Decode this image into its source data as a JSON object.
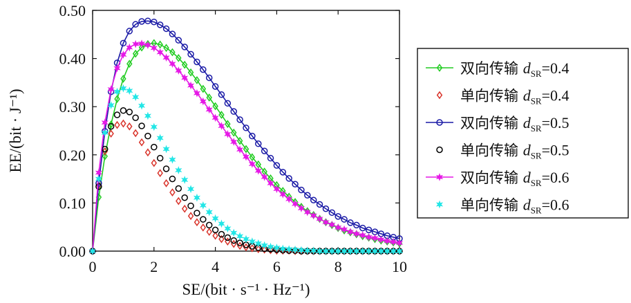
{
  "chart_data": {
    "type": "line",
    "xlabel": "SE/(bit · s⁻¹ · Hz⁻¹)",
    "ylabel": "EE/(bit · J⁻¹)",
    "xlim": [
      0,
      10
    ],
    "ylim": [
      0,
      0.5
    ],
    "xticks": [
      "0",
      "2",
      "4",
      "6",
      "8",
      "10"
    ],
    "yticks": [
      "0.00",
      "0.10",
      "0.20",
      "0.30",
      "0.40",
      "0.50"
    ],
    "grid": false,
    "legend_position": "right",
    "series": [
      {
        "name": "双向传输 dSR=0.4",
        "label_main": "双向传输 ",
        "label_var": "d",
        "label_sub": "SR",
        "label_val": "=0.4",
        "color": "#22cc22",
        "marker": "diamond",
        "line": true,
        "x": [
          0,
          0.2,
          0.4,
          0.6,
          0.8,
          1.0,
          1.2,
          1.4,
          1.6,
          1.8,
          2.0,
          2.2,
          2.4,
          2.6,
          2.8,
          3.0,
          3.2,
          3.4,
          3.6,
          3.8,
          4.0,
          4.2,
          4.4,
          4.6,
          4.8,
          5.0,
          5.2,
          5.4,
          5.6,
          5.8,
          6.0,
          6.2,
          6.4,
          6.6,
          6.8,
          7.0,
          7.2,
          7.4,
          7.6,
          7.8,
          8.0,
          8.2,
          8.4,
          8.6,
          8.8,
          9.0,
          9.2,
          9.4,
          9.6,
          9.8,
          10.0
        ],
        "y": [
          0,
          0.112,
          0.197,
          0.263,
          0.316,
          0.358,
          0.389,
          0.41,
          0.423,
          0.43,
          0.432,
          0.429,
          0.422,
          0.413,
          0.401,
          0.387,
          0.371,
          0.355,
          0.337,
          0.319,
          0.301,
          0.283,
          0.264,
          0.246,
          0.229,
          0.212,
          0.195,
          0.18,
          0.165,
          0.151,
          0.137,
          0.125,
          0.113,
          0.102,
          0.092,
          0.083,
          0.075,
          0.067,
          0.06,
          0.054,
          0.048,
          0.043,
          0.039,
          0.035,
          0.031,
          0.028,
          0.025,
          0.022,
          0.02,
          0.018,
          0.016
        ]
      },
      {
        "name": "单向传输 dSR=0.4",
        "label_main": "单向传输 ",
        "label_var": "d",
        "label_sub": "SR",
        "label_val": "=0.4",
        "color": "#d9342b",
        "marker": "diamond",
        "line": false,
        "x": [
          0,
          0.2,
          0.4,
          0.6,
          0.8,
          1.0,
          1.2,
          1.4,
          1.6,
          1.8,
          2.0,
          2.2,
          2.4,
          2.6,
          2.8,
          3.0,
          3.2,
          3.4,
          3.6,
          3.8,
          4.0,
          4.2,
          4.4,
          4.6,
          4.8,
          5.0,
          5.2,
          5.4,
          5.6,
          5.8,
          6.0,
          6.2,
          6.4,
          6.6,
          6.8,
          7.0,
          7.2,
          7.4,
          7.6,
          7.8,
          8.0,
          8.2,
          8.4,
          8.6,
          8.8,
          9.0,
          9.2,
          9.4,
          9.6,
          9.8,
          10.0
        ],
        "y": [
          0,
          0.137,
          0.207,
          0.244,
          0.262,
          0.265,
          0.259,
          0.245,
          0.226,
          0.205,
          0.183,
          0.162,
          0.141,
          0.122,
          0.104,
          0.088,
          0.073,
          0.06,
          0.049,
          0.04,
          0.032,
          0.025,
          0.02,
          0.015,
          0.011,
          0.008,
          0.006,
          0.004,
          0.003,
          0.002,
          0.001,
          0.001,
          0.001,
          0,
          0,
          0,
          0,
          0,
          0,
          0,
          0,
          0,
          0,
          0,
          0,
          0,
          0,
          0,
          0,
          0,
          0
        ]
      },
      {
        "name": "双向传输 dSR=0.5",
        "label_main": "双向传输 ",
        "label_var": "d",
        "label_sub": "SR",
        "label_val": "=0.5",
        "color": "#1a1aa6",
        "marker": "circle",
        "line": true,
        "x": [
          0,
          0.2,
          0.4,
          0.6,
          0.8,
          1.0,
          1.2,
          1.4,
          1.6,
          1.8,
          2.0,
          2.2,
          2.4,
          2.6,
          2.8,
          3.0,
          3.2,
          3.4,
          3.6,
          3.8,
          4.0,
          4.2,
          4.4,
          4.6,
          4.8,
          5.0,
          5.2,
          5.4,
          5.6,
          5.8,
          6.0,
          6.2,
          6.4,
          6.6,
          6.8,
          7.0,
          7.2,
          7.4,
          7.6,
          7.8,
          8.0,
          8.2,
          8.4,
          8.6,
          8.8,
          9.0,
          9.2,
          9.4,
          9.6,
          9.8,
          10.0
        ],
        "y": [
          0,
          0.141,
          0.249,
          0.331,
          0.391,
          0.432,
          0.457,
          0.471,
          0.477,
          0.478,
          0.476,
          0.47,
          0.462,
          0.451,
          0.438,
          0.424,
          0.409,
          0.393,
          0.377,
          0.36,
          0.342,
          0.325,
          0.307,
          0.29,
          0.273,
          0.256,
          0.239,
          0.223,
          0.208,
          0.193,
          0.178,
          0.164,
          0.151,
          0.139,
          0.127,
          0.116,
          0.106,
          0.097,
          0.088,
          0.08,
          0.072,
          0.066,
          0.059,
          0.054,
          0.048,
          0.044,
          0.04,
          0.036,
          0.032,
          0.029,
          0.026
        ]
      },
      {
        "name": "单向传输 dSR=0.5",
        "label_main": "单向传输 ",
        "label_var": "d",
        "label_sub": "SR",
        "label_val": "=0.5",
        "color": "#000000",
        "marker": "circle",
        "line": false,
        "x": [
          0,
          0.2,
          0.4,
          0.6,
          0.8,
          1.0,
          1.2,
          1.4,
          1.6,
          1.8,
          2.0,
          2.2,
          2.4,
          2.6,
          2.8,
          3.0,
          3.2,
          3.4,
          3.6,
          3.8,
          4.0,
          4.2,
          4.4,
          4.6,
          4.8,
          5.0,
          5.2,
          5.4,
          5.6,
          5.8,
          6.0,
          6.2,
          6.4,
          6.6,
          6.8,
          7.0,
          7.2,
          7.4,
          7.6,
          7.8,
          8.0,
          8.2,
          8.4,
          8.6,
          8.8,
          9.0,
          9.2,
          9.4,
          9.6,
          9.8,
          10.0
        ],
        "y": [
          0,
          0.134,
          0.212,
          0.259,
          0.283,
          0.292,
          0.289,
          0.277,
          0.26,
          0.239,
          0.216,
          0.193,
          0.171,
          0.15,
          0.13,
          0.111,
          0.094,
          0.079,
          0.066,
          0.054,
          0.044,
          0.035,
          0.028,
          0.022,
          0.017,
          0.013,
          0.01,
          0.007,
          0.005,
          0.004,
          0.003,
          0.002,
          0.001,
          0.001,
          0,
          0,
          0,
          0,
          0,
          0,
          0,
          0,
          0,
          0,
          0,
          0,
          0,
          0,
          0,
          0,
          0
        ]
      },
      {
        "name": "双向传输 dSR=0.6",
        "label_main": "双向传输 ",
        "label_var": "d",
        "label_sub": "SR",
        "label_val": "=0.6",
        "color": "#e619e6",
        "marker": "star",
        "line": true,
        "x": [
          0,
          0.2,
          0.4,
          0.6,
          0.8,
          1.0,
          1.2,
          1.4,
          1.6,
          1.8,
          2.0,
          2.2,
          2.4,
          2.6,
          2.8,
          3.0,
          3.2,
          3.4,
          3.6,
          3.8,
          4.0,
          4.2,
          4.4,
          4.6,
          4.8,
          5.0,
          5.2,
          5.4,
          5.6,
          5.8,
          6.0,
          6.2,
          6.4,
          6.6,
          6.8,
          7.0,
          7.2,
          7.4,
          7.6,
          7.8,
          8.0,
          8.2,
          8.4,
          8.6,
          8.8,
          9.0,
          9.2,
          9.4,
          9.6,
          9.8,
          10.0
        ],
        "y": [
          0,
          0.163,
          0.267,
          0.336,
          0.38,
          0.408,
          0.423,
          0.43,
          0.431,
          0.428,
          0.422,
          0.413,
          0.402,
          0.389,
          0.375,
          0.36,
          0.344,
          0.328,
          0.311,
          0.294,
          0.277,
          0.26,
          0.243,
          0.227,
          0.211,
          0.196,
          0.181,
          0.167,
          0.154,
          0.141,
          0.129,
          0.118,
          0.108,
          0.098,
          0.089,
          0.081,
          0.074,
          0.067,
          0.06,
          0.055,
          0.049,
          0.045,
          0.04,
          0.036,
          0.033,
          0.029,
          0.027,
          0.024,
          0.021,
          0.019,
          0.017
        ]
      },
      {
        "name": "单向传输 dSR=0.6",
        "label_main": "单向传输 ",
        "label_var": "d",
        "label_sub": "SR",
        "label_val": "=0.6",
        "color": "#22e6e6",
        "marker": "star",
        "line": false,
        "x": [
          0,
          0.2,
          0.4,
          0.6,
          0.8,
          1.0,
          1.2,
          1.4,
          1.6,
          1.8,
          2.0,
          2.2,
          2.4,
          2.6,
          2.8,
          3.0,
          3.2,
          3.4,
          3.6,
          3.8,
          4.0,
          4.2,
          4.4,
          4.6,
          4.8,
          5.0,
          5.2,
          5.4,
          5.6,
          5.8,
          6.0,
          6.2,
          6.4,
          6.6,
          6.8,
          7.0,
          7.2,
          7.4,
          7.6,
          7.8,
          8.0,
          8.2,
          8.4,
          8.6,
          8.8,
          9.0,
          9.2,
          9.4,
          9.6,
          9.8,
          10.0
        ],
        "y": [
          0,
          0.15,
          0.246,
          0.303,
          0.331,
          0.338,
          0.333,
          0.32,
          0.302,
          0.281,
          0.258,
          0.235,
          0.212,
          0.19,
          0.168,
          0.148,
          0.129,
          0.111,
          0.095,
          0.081,
          0.068,
          0.057,
          0.047,
          0.038,
          0.031,
          0.025,
          0.02,
          0.016,
          0.012,
          0.009,
          0.007,
          0.005,
          0.004,
          0.003,
          0.002,
          0.001,
          0.001,
          0,
          0,
          0,
          0,
          0,
          0,
          0,
          0,
          0,
          0,
          0,
          0,
          0,
          0
        ]
      }
    ]
  }
}
